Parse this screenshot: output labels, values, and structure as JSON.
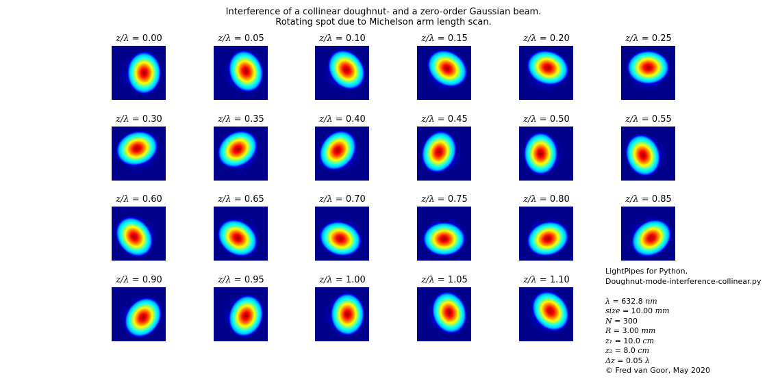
{
  "figure": {
    "title_line1": "Interference of a collinear doughnut- and a zero-order Gaussian beam.",
    "title_line2": "Rotating spot due to Michelson arm length scan.",
    "panel_label_prefix": "z/λ = ",
    "panels": [
      {
        "label": "0.00",
        "angle": 0
      },
      {
        "label": "0.05",
        "angle": 18
      },
      {
        "label": "0.10",
        "angle": 36
      },
      {
        "label": "0.15",
        "angle": 54
      },
      {
        "label": "0.20",
        "angle": 72
      },
      {
        "label": "0.25",
        "angle": 90
      },
      {
        "label": "0.30",
        "angle": 108
      },
      {
        "label": "0.35",
        "angle": 126
      },
      {
        "label": "0.40",
        "angle": 144
      },
      {
        "label": "0.45",
        "angle": 162
      },
      {
        "label": "0.50",
        "angle": 180
      },
      {
        "label": "0.55",
        "angle": 198
      },
      {
        "label": "0.60",
        "angle": 216
      },
      {
        "label": "0.65",
        "angle": 234
      },
      {
        "label": "0.70",
        "angle": 252
      },
      {
        "label": "0.75",
        "angle": 270
      },
      {
        "label": "0.80",
        "angle": 288
      },
      {
        "label": "0.85",
        "angle": 306
      },
      {
        "label": "0.90",
        "angle": 324
      },
      {
        "label": "0.95",
        "angle": 342
      },
      {
        "label": "1.00",
        "angle": 0
      },
      {
        "label": "1.05",
        "angle": 18
      },
      {
        "label": "1.10",
        "angle": 36
      }
    ],
    "colormap": [
      "#00008b",
      "#0000ff",
      "#00bfff",
      "#00ffff",
      "#80ff80",
      "#ffff00",
      "#ff7f00",
      "#ff0000",
      "#8b0000"
    ]
  },
  "info": {
    "line1": "LightPipes for Python,",
    "line2": "Doughnut-mode-interference-collinear.py",
    "params": [
      {
        "sym": "λ",
        "val": " = 632.8 ",
        "unit": "nm"
      },
      {
        "sym": "size",
        "val": " = 10.00 ",
        "unit": "mm"
      },
      {
        "sym": "N",
        "val": " = 300",
        "unit": ""
      },
      {
        "sym": "R",
        "val": " = 3.00 ",
        "unit": "mm"
      },
      {
        "sym": "z₁",
        "val": " = 10.0 ",
        "unit": "cm"
      },
      {
        "sym": "z₂",
        "val": " = 8.0 ",
        "unit": "cm"
      },
      {
        "sym": "Δz",
        "val": " = 0.05 ",
        "unit": "λ"
      }
    ],
    "credit": "© Fred van Goor, May 2020"
  }
}
